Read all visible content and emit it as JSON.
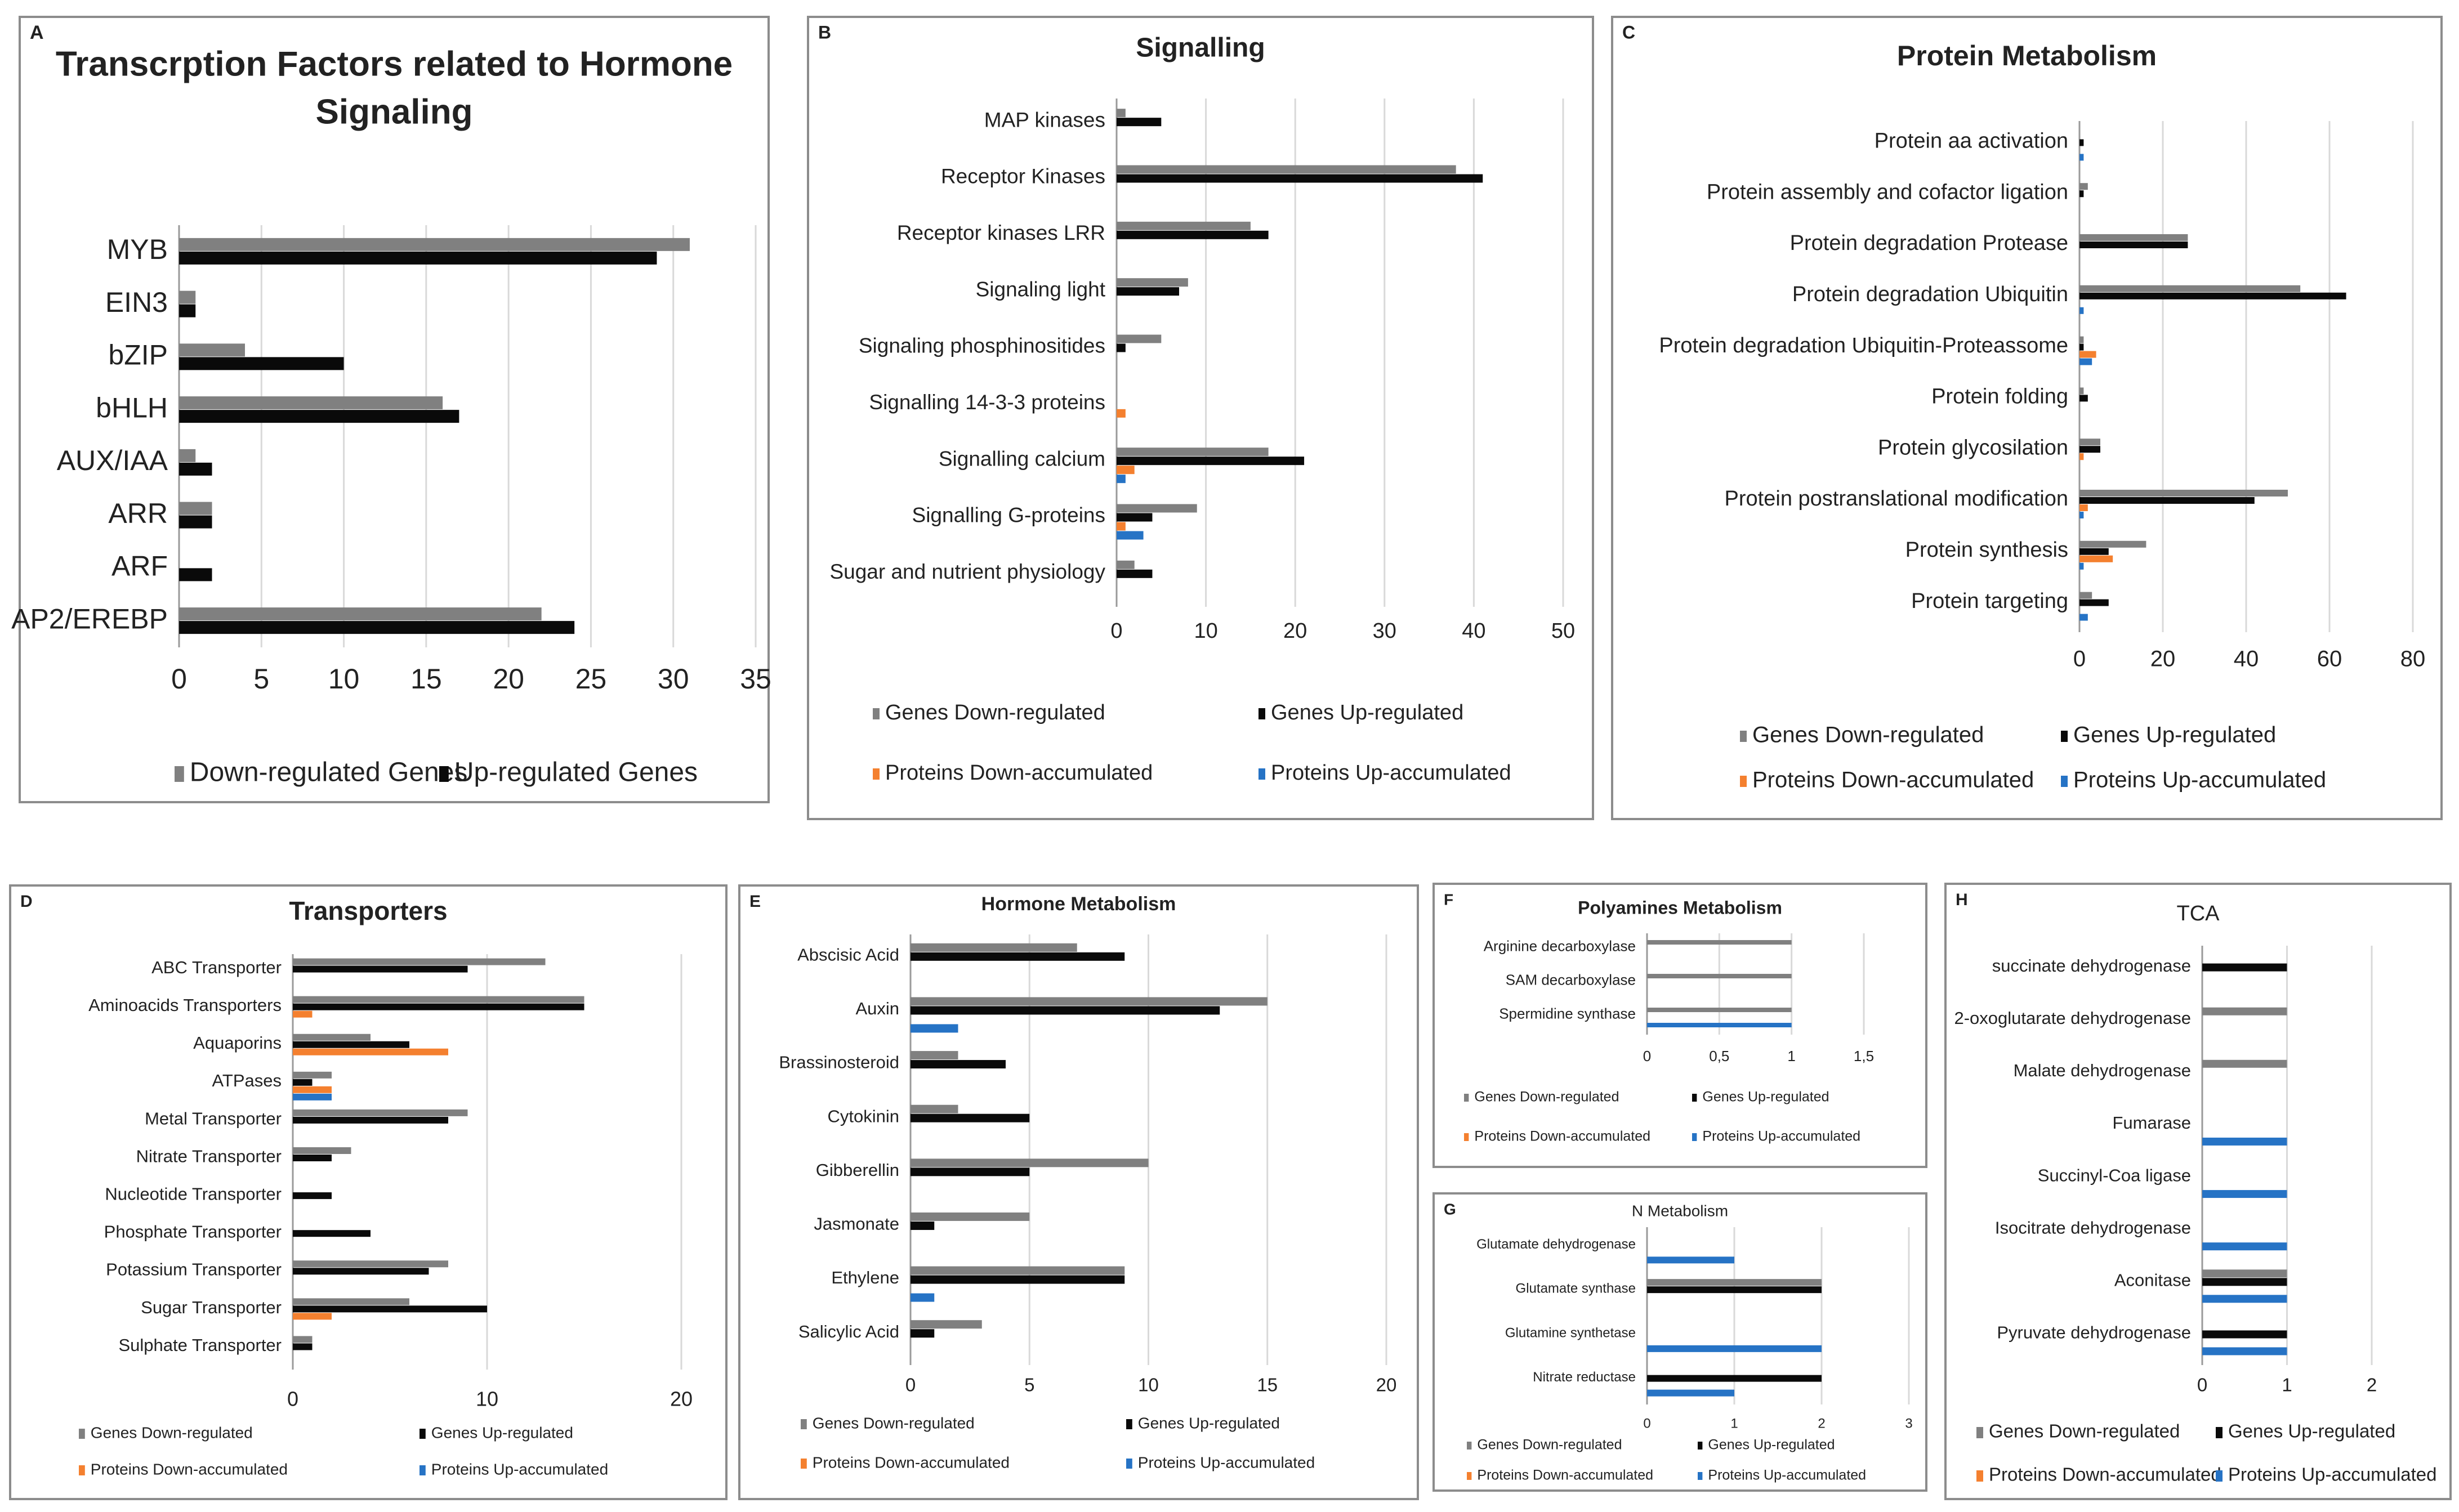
{
  "colors": {
    "genes_down": "#808080",
    "genes_up": "#0a0a0a",
    "proteins_down": "#f4802f",
    "proteins_up": "#2673c5",
    "grid": "#d9d9d9",
    "frame": "#8c8c8c"
  },
  "chart_data": [
    {
      "panel": "A",
      "type": "bar",
      "orientation": "horizontal",
      "title_lines": [
        "Transcrption Factors related to Hormone",
        "Signaling"
      ],
      "categories": [
        "MYB",
        "EIN3",
        "bZIP",
        "bHLH",
        "AUX/IAA",
        "ARR",
        "ARF",
        "AP2/EREBP"
      ],
      "series": [
        {
          "name": "Down-regulated Genes",
          "key": "genes_down",
          "values": [
            31,
            1,
            4,
            16,
            1,
            2,
            0,
            22
          ]
        },
        {
          "name": "Up-regulated Genes",
          "key": "genes_up",
          "values": [
            29,
            1,
            10,
            17,
            2,
            2,
            2,
            24
          ]
        }
      ],
      "xlim": [
        0,
        35
      ],
      "ticks": [
        0,
        5,
        10,
        15,
        20,
        25,
        30,
        35
      ],
      "tick_labels": [
        "0",
        "5",
        "10",
        "15",
        "20",
        "25",
        "30",
        "35"
      ],
      "legend": "bottom",
      "grid": true
    },
    {
      "panel": "B",
      "type": "bar",
      "orientation": "horizontal",
      "title_lines": [
        "Signalling"
      ],
      "categories": [
        "MAP kinases",
        "Receptor Kinases",
        "Receptor kinases LRR",
        "Signaling light",
        "Signaling phosphinositides",
        "Signalling 14-3-3 proteins",
        "Signalling calcium",
        "Signalling G-proteins",
        "Sugar and nutrient physiology"
      ],
      "series": [
        {
          "name": "Genes Down-regulated",
          "key": "genes_down",
          "values": [
            1,
            38,
            15,
            8,
            5,
            0,
            17,
            9,
            2
          ]
        },
        {
          "name": "Genes Up-regulated",
          "key": "genes_up",
          "values": [
            5,
            41,
            17,
            7,
            1,
            0,
            21,
            4,
            4
          ]
        },
        {
          "name": "Proteins Down-accumulated",
          "key": "proteins_down",
          "values": [
            0,
            0,
            0,
            0,
            0,
            1,
            2,
            1,
            0
          ]
        },
        {
          "name": "Proteins Up-accumulated",
          "key": "proteins_up",
          "values": [
            0,
            0,
            0,
            0,
            0,
            0,
            1,
            3,
            0
          ]
        }
      ],
      "xlim": [
        0,
        50
      ],
      "ticks": [
        0,
        10,
        20,
        30,
        40,
        50
      ],
      "tick_labels": [
        "0",
        "10",
        "20",
        "30",
        "40",
        "50"
      ],
      "legend": "bottom",
      "grid": true
    },
    {
      "panel": "C",
      "type": "bar",
      "orientation": "horizontal",
      "title_lines": [
        "Protein Metabolism"
      ],
      "categories": [
        "Protein aa activation",
        "Protein assembly and cofactor ligation",
        "Protein degradation Protease",
        "Protein degradation Ubiquitin",
        "Protein degradation Ubiquitin-Proteassome",
        "Protein folding",
        "Protein glycosilation",
        "Protein postranslational modification",
        "Protein synthesis",
        "Protein targeting"
      ],
      "series": [
        {
          "name": "Genes Down-regulated",
          "key": "genes_down",
          "values": [
            0,
            2,
            26,
            53,
            1,
            1,
            5,
            50,
            16,
            3
          ]
        },
        {
          "name": "Genes Up-regulated",
          "key": "genes_up",
          "values": [
            1,
            1,
            26,
            64,
            1,
            2,
            5,
            42,
            7,
            7
          ]
        },
        {
          "name": "Proteins Down-accumulated",
          "key": "proteins_down",
          "values": [
            0,
            0,
            0,
            0,
            4,
            0,
            1,
            2,
            8,
            0
          ]
        },
        {
          "name": "Proteins Up-accumulated",
          "key": "proteins_up",
          "values": [
            1,
            0,
            0,
            1,
            3,
            0,
            0,
            1,
            1,
            2
          ]
        }
      ],
      "xlim": [
        0,
        80
      ],
      "ticks": [
        0,
        20,
        40,
        60,
        80
      ],
      "tick_labels": [
        "0",
        "20",
        "40",
        "60",
        "80"
      ],
      "legend": "bottom",
      "grid": true
    },
    {
      "panel": "D",
      "type": "bar",
      "orientation": "horizontal",
      "title_lines": [
        "Transporters"
      ],
      "categories": [
        "ABC Transporter",
        "Aminoacids Transporters",
        "Aquaporins",
        "ATPases",
        "Metal Transporter",
        "Nitrate Transporter",
        "Nucleotide Transporter",
        "Phosphate Transporter",
        "Potassium Transporter",
        "Sugar Transporter",
        "Sulphate Transporter"
      ],
      "series": [
        {
          "name": "Genes Down-regulated",
          "key": "genes_down",
          "values": [
            13,
            15,
            4,
            2,
            9,
            3,
            0,
            0,
            8,
            6,
            1
          ]
        },
        {
          "name": "Genes Up-regulated",
          "key": "genes_up",
          "values": [
            9,
            15,
            6,
            1,
            8,
            2,
            2,
            4,
            7,
            10,
            1
          ]
        },
        {
          "name": "Proteins Down-accumulated",
          "key": "proteins_down",
          "values": [
            0,
            1,
            8,
            2,
            0,
            0,
            0,
            0,
            0,
            2,
            0
          ]
        },
        {
          "name": "Proteins Up-accumulated",
          "key": "proteins_up",
          "values": [
            0,
            0,
            0,
            2,
            0,
            0,
            0,
            0,
            0,
            0,
            0
          ]
        }
      ],
      "xlim": [
        0,
        20
      ],
      "ticks": [
        0,
        10,
        20
      ],
      "tick_labels": [
        "0",
        "10",
        "20"
      ],
      "legend": "bottom",
      "grid": true
    },
    {
      "panel": "E",
      "type": "bar",
      "orientation": "horizontal",
      "title_lines": [
        "Hormone Metabolism"
      ],
      "categories": [
        "Abscisic Acid",
        "Auxin",
        "Brassinosteroid",
        "Cytokinin",
        "Gibberellin",
        "Jasmonate",
        "Ethylene",
        "Salicylic Acid"
      ],
      "series": [
        {
          "name": "Genes Down-regulated",
          "key": "genes_down",
          "values": [
            7,
            15,
            2,
            2,
            10,
            5,
            9,
            3
          ]
        },
        {
          "name": "Genes Up-regulated",
          "key": "genes_up",
          "values": [
            9,
            13,
            4,
            5,
            5,
            1,
            9,
            1
          ]
        },
        {
          "name": "Proteins Down-accumulated",
          "key": "proteins_down",
          "values": [
            0,
            0,
            0,
            0,
            0,
            0,
            0,
            0
          ]
        },
        {
          "name": "Proteins Up-accumulated",
          "key": "proteins_up",
          "values": [
            0,
            2,
            0,
            0,
            0,
            0,
            1,
            0
          ]
        }
      ],
      "xlim": [
        0,
        20
      ],
      "ticks": [
        0,
        5,
        10,
        15,
        20
      ],
      "tick_labels": [
        "0",
        "5",
        "10",
        "15",
        "20"
      ],
      "legend": "bottom",
      "grid": true
    },
    {
      "panel": "F",
      "type": "bar",
      "orientation": "horizontal",
      "title_lines": [
        "Polyamines Metabolism"
      ],
      "categories": [
        "Arginine decarboxylase",
        "SAM decarboxylase",
        "Spermidine synthase"
      ],
      "series": [
        {
          "name": "Genes Down-regulated",
          "key": "genes_down",
          "values": [
            1,
            1,
            1
          ]
        },
        {
          "name": "Genes Up-regulated",
          "key": "genes_up",
          "values": [
            0,
            0,
            0
          ]
        },
        {
          "name": "Proteins Down-accumulated",
          "key": "proteins_down",
          "values": [
            0,
            0,
            0
          ]
        },
        {
          "name": "Proteins Up-accumulated",
          "key": "proteins_up",
          "values": [
            0,
            0,
            1
          ]
        }
      ],
      "xlim": [
        0,
        1.5
      ],
      "ticks": [
        0,
        0.5,
        1,
        1.5
      ],
      "tick_labels": [
        "0",
        "0,5",
        "1",
        "1,5"
      ],
      "legend": "bottom",
      "grid": true
    },
    {
      "panel": "G",
      "type": "bar",
      "orientation": "horizontal",
      "title_lines": [
        "N Metabolism"
      ],
      "categories": [
        "Glutamate dehydrogenase",
        "Glutamate synthase",
        "Glutamine synthetase",
        "Nitrate reductase"
      ],
      "series": [
        {
          "name": "Genes Down-regulated",
          "key": "genes_down",
          "values": [
            0,
            2,
            0,
            0
          ]
        },
        {
          "name": "Genes Up-regulated",
          "key": "genes_up",
          "values": [
            0,
            2,
            0,
            2
          ]
        },
        {
          "name": "Proteins Down-accumulated",
          "key": "proteins_down",
          "values": [
            0,
            0,
            0,
            0
          ]
        },
        {
          "name": "Proteins Up-accumulated",
          "key": "proteins_up",
          "values": [
            1,
            0,
            2,
            1
          ]
        }
      ],
      "xlim": [
        0,
        3
      ],
      "ticks": [
        0,
        1,
        2,
        3
      ],
      "tick_labels": [
        "0",
        "1",
        "2",
        "3"
      ],
      "legend": "bottom",
      "grid": true
    },
    {
      "panel": "H",
      "type": "bar",
      "orientation": "horizontal",
      "title_lines": [
        "TCA"
      ],
      "categories": [
        "succinate dehydrogenase",
        "2-oxoglutarate dehydrogenase",
        "Malate dehydrogenase",
        "Fumarase",
        "Succinyl-Coa ligase",
        "Isocitrate dehydrogenase",
        "Aconitase",
        "Pyruvate dehydrogenase"
      ],
      "series": [
        {
          "name": "Genes Down-regulated",
          "key": "genes_down",
          "values": [
            0,
            1,
            1,
            0,
            0,
            0,
            1,
            0
          ]
        },
        {
          "name": "Genes Up-regulated",
          "key": "genes_up",
          "values": [
            1,
            0,
            0,
            0,
            0,
            0,
            1,
            1
          ]
        },
        {
          "name": "Proteins Down-accumulated",
          "key": "proteins_down",
          "values": [
            0,
            0,
            0,
            0,
            0,
            0,
            0,
            0
          ]
        },
        {
          "name": "Proteins Up-accumulated",
          "key": "proteins_up",
          "values": [
            0,
            0,
            0,
            1,
            1,
            1,
            1,
            1
          ]
        }
      ],
      "xlim": [
        0,
        2
      ],
      "ticks": [
        0,
        1,
        2
      ],
      "tick_labels": [
        "0",
        "1",
        "2"
      ],
      "legend": "bottom",
      "grid": true
    }
  ]
}
